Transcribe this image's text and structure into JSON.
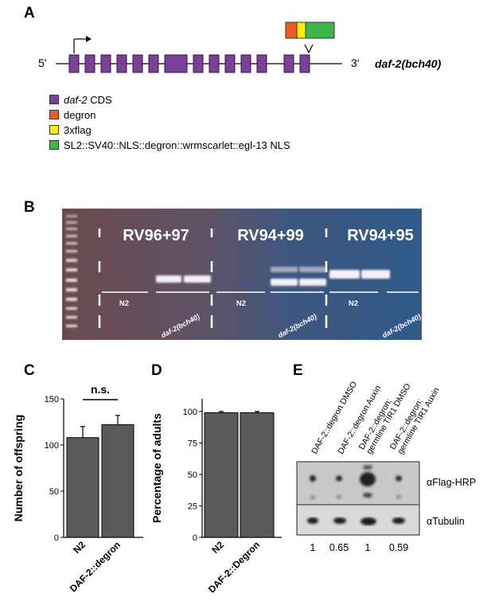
{
  "panels": {
    "a": {
      "letter": "A",
      "end5": "5'",
      "end3": "3'",
      "allele": "daf-2(bch40)",
      "exon_count": 14,
      "legend": [
        {
          "italic": "daf-2",
          "text": " CDS",
          "color": "#7b3f98"
        },
        {
          "italic": "",
          "text": "degron",
          "color": "#f15a24"
        },
        {
          "italic": "",
          "text": "3xflag",
          "color": "#ffee00"
        },
        {
          "italic": "",
          "text": "SL2::SV40::NLS::degron::wrmscarlet::egl-13 NLS",
          "color": "#3cb54a"
        }
      ]
    },
    "b": {
      "letter": "B",
      "groups": [
        "RV96+97",
        "RV94+99",
        "RV94+95"
      ],
      "lanes": [
        "N2",
        "daf-2(bch40)",
        "N2",
        "daf-2(bch40)",
        "N2",
        "daf-2(bch40)"
      ]
    },
    "c": {
      "letter": "C",
      "significance": "n.s."
    },
    "d": {
      "letter": "D"
    },
    "e": {
      "letter": "E",
      "lanes": [
        "DAF-2::degron DMSO",
        "DAF-2::degron Auxin",
        "DAF-2::degron; germline TIR1 DMSO",
        "DAF-2::degron; germline TIR1 Auxin"
      ],
      "blots": [
        "αFlag-HRP",
        "αTubulin"
      ],
      "quant": [
        "1",
        "0.65",
        "1",
        "0.59"
      ]
    }
  },
  "chart_data": [
    {
      "type": "bar",
      "panel": "C",
      "categories": [
        "N2",
        "DAF-2::degron"
      ],
      "values": [
        108,
        122
      ],
      "errors": [
        12,
        10
      ],
      "ylabel": "Number of offspring",
      "ylim": [
        0,
        150
      ],
      "yticks": [
        0,
        50,
        100,
        150
      ],
      "bar_color": "#5a5a5a"
    },
    {
      "type": "bar",
      "panel": "D",
      "categories": [
        "N2",
        "DAF-2::Degron"
      ],
      "values": [
        99,
        99
      ],
      "errors": [
        1,
        1
      ],
      "ylabel": "Percentage of adults",
      "ylim": [
        0,
        110
      ],
      "yticks": [
        0,
        25,
        50,
        75,
        100
      ],
      "bar_color": "#5a5a5a"
    }
  ]
}
